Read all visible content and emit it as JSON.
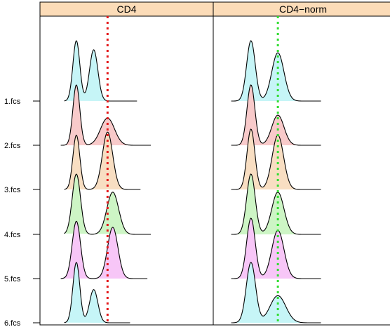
{
  "chart_data": {
    "type": "density-ridgeline",
    "panels": [
      {
        "title": "CD4",
        "reference_line": {
          "x": 1.95,
          "color": "#e41a1c"
        }
      },
      {
        "title": "CD4−norm",
        "reference_line": {
          "x": 1.8,
          "color": "#33dd33"
        }
      }
    ],
    "samples": [
      "1.fcs",
      "2.fcs",
      "3.fcs",
      "4.fcs",
      "5.fcs",
      "6.fcs"
    ],
    "xlim": [
      0,
      5
    ],
    "grid": false,
    "strip_color": "#fcdcb8",
    "sample_colors": [
      "#c6f5f7",
      "#f8caca",
      "#f8dec2",
      "#cdf5c5",
      "#f7c6f7",
      "#c6f5f7"
    ],
    "series": [
      {
        "panel": 0,
        "sample": "1.fcs",
        "range": [
          0.7,
          2.8
        ],
        "peaks": [
          {
            "mu": 1.05,
            "sd": 0.1,
            "h": 1.0
          },
          {
            "mu": 1.55,
            "sd": 0.12,
            "h": 0.85
          }
        ]
      },
      {
        "panel": 0,
        "sample": "2.fcs",
        "range": [
          0.6,
          3.2
        ],
        "peaks": [
          {
            "mu": 1.05,
            "sd": 0.1,
            "h": 1.0
          },
          {
            "mu": 1.95,
            "sd": 0.2,
            "h": 0.45
          }
        ]
      },
      {
        "panel": 0,
        "sample": "3.fcs",
        "range": [
          0.7,
          2.9
        ],
        "peaks": [
          {
            "mu": 1.05,
            "sd": 0.1,
            "h": 0.9
          },
          {
            "mu": 1.95,
            "sd": 0.15,
            "h": 0.95
          }
        ]
      },
      {
        "panel": 0,
        "sample": "4.fcs",
        "range": [
          0.7,
          3.2
        ],
        "peaks": [
          {
            "mu": 1.05,
            "sd": 0.12,
            "h": 1.0
          },
          {
            "mu": 2.1,
            "sd": 0.17,
            "h": 0.7
          }
        ]
      },
      {
        "panel": 0,
        "sample": "5.fcs",
        "range": [
          0.6,
          3.1
        ],
        "peaks": [
          {
            "mu": 1.05,
            "sd": 0.12,
            "h": 0.95
          },
          {
            "mu": 2.1,
            "sd": 0.15,
            "h": 0.85
          }
        ]
      },
      {
        "panel": 0,
        "sample": "6.fcs",
        "range": [
          0.7,
          2.6
        ],
        "peaks": [
          {
            "mu": 1.05,
            "sd": 0.1,
            "h": 1.0
          },
          {
            "mu": 1.55,
            "sd": 0.12,
            "h": 0.55
          }
        ]
      },
      {
        "panel": 1,
        "sample": "1.fcs",
        "range": [
          0.5,
          3.0
        ],
        "peaks": [
          {
            "mu": 1.05,
            "sd": 0.12,
            "h": 1.0
          },
          {
            "mu": 1.8,
            "sd": 0.17,
            "h": 0.8
          }
        ]
      },
      {
        "panel": 1,
        "sample": "2.fcs",
        "range": [
          0.5,
          3.0
        ],
        "peaks": [
          {
            "mu": 1.05,
            "sd": 0.11,
            "h": 1.0
          },
          {
            "mu": 1.8,
            "sd": 0.17,
            "h": 0.5
          }
        ]
      },
      {
        "panel": 1,
        "sample": "3.fcs",
        "range": [
          0.5,
          3.0
        ],
        "peaks": [
          {
            "mu": 1.05,
            "sd": 0.11,
            "h": 1.0
          },
          {
            "mu": 1.8,
            "sd": 0.16,
            "h": 0.9
          }
        ]
      },
      {
        "panel": 1,
        "sample": "4.fcs",
        "range": [
          0.5,
          3.0
        ],
        "peaks": [
          {
            "mu": 1.05,
            "sd": 0.12,
            "h": 1.0
          },
          {
            "mu": 1.8,
            "sd": 0.17,
            "h": 0.7
          }
        ]
      },
      {
        "panel": 1,
        "sample": "5.fcs",
        "range": [
          0.5,
          3.0
        ],
        "peaks": [
          {
            "mu": 1.05,
            "sd": 0.12,
            "h": 1.0
          },
          {
            "mu": 1.8,
            "sd": 0.17,
            "h": 0.8
          }
        ]
      },
      {
        "panel": 1,
        "sample": "6.fcs",
        "range": [
          0.5,
          3.0
        ],
        "peaks": [
          {
            "mu": 1.05,
            "sd": 0.13,
            "h": 1.0
          },
          {
            "mu": 1.8,
            "sd": 0.22,
            "h": 0.45
          }
        ]
      }
    ]
  }
}
